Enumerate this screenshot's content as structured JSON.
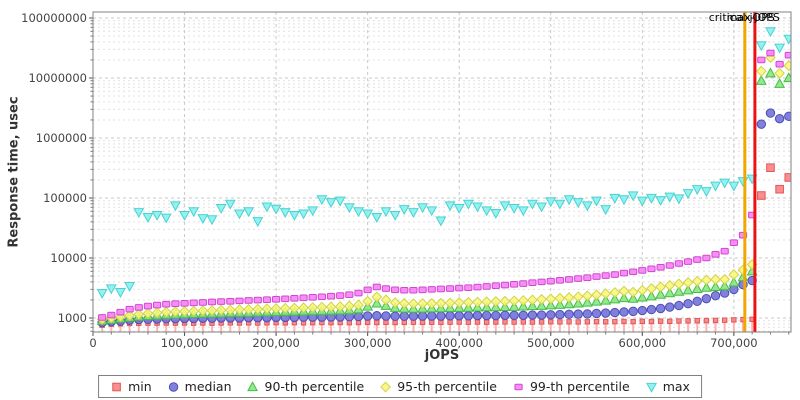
{
  "chart_data": {
    "type": "scatter",
    "title": "",
    "xlabel": "jOPS",
    "ylabel": "Response time, usec",
    "x_axis": {
      "tick_labels": [
        "0",
        "100,000",
        "200,000",
        "300,000",
        "400,000",
        "500,000",
        "600,000",
        "700,000"
      ],
      "tick_values": [
        0,
        100000,
        200000,
        300000,
        400000,
        500000,
        600000,
        700000
      ],
      "minor_tick_step": 20000,
      "xlim": [
        0,
        762000
      ]
    },
    "y_axis": {
      "scale": "log",
      "tick_labels": [
        "1000",
        "10000",
        "100000",
        "1000000",
        "10000000",
        "100000000"
      ],
      "tick_values": [
        1000,
        10000,
        100000,
        1000000,
        10000000,
        100000000
      ],
      "ylim": [
        584,
        126000000
      ]
    },
    "grid": true,
    "legend_position": "bottom",
    "annotations": {
      "critical": {
        "label": "critical-jOPS",
        "jops": 712000,
        "color": "#f2a600"
      },
      "max": {
        "label": "max-jOPS",
        "jops": 723000,
        "color": "#ee1111"
      }
    },
    "x": [
      10000,
      20000,
      30000,
      40000,
      50000,
      60000,
      70000,
      80000,
      90000,
      100000,
      110000,
      120000,
      130000,
      140000,
      150000,
      160000,
      170000,
      180000,
      190000,
      200000,
      210000,
      220000,
      230000,
      240000,
      250000,
      260000,
      270000,
      280000,
      290000,
      300000,
      310000,
      320000,
      330000,
      340000,
      350000,
      360000,
      370000,
      380000,
      390000,
      400000,
      410000,
      420000,
      430000,
      440000,
      450000,
      460000,
      470000,
      480000,
      490000,
      500000,
      510000,
      520000,
      530000,
      540000,
      550000,
      560000,
      570000,
      580000,
      590000,
      600000,
      610000,
      620000,
      630000,
      640000,
      650000,
      660000,
      670000,
      680000,
      690000,
      700000,
      710000,
      720000,
      730000,
      740000,
      750000,
      760000
    ],
    "series": [
      {
        "name": "min",
        "marker": "square-stick",
        "fill": "#f97d7d",
        "stroke": "#df5858",
        "stick": "#ffb3b3",
        "values": [
          760,
          790,
          800,
          810,
          815,
          820,
          820,
          825,
          820,
          825,
          820,
          825,
          820,
          825,
          830,
          825,
          830,
          825,
          830,
          835,
          830,
          835,
          830,
          835,
          840,
          835,
          840,
          835,
          840,
          845,
          840,
          845,
          840,
          845,
          850,
          845,
          850,
          845,
          850,
          855,
          850,
          855,
          850,
          855,
          860,
          855,
          860,
          855,
          860,
          865,
          860,
          865,
          860,
          865,
          870,
          865,
          870,
          875,
          870,
          880,
          875,
          885,
          880,
          890,
          895,
          900,
          905,
          910,
          920,
          930,
          940,
          950,
          110000,
          320000,
          140000,
          220000
        ]
      },
      {
        "name": "median",
        "marker": "circle",
        "fill": "#7070d8",
        "stroke": "#4c4cb8",
        "values": [
          840,
          870,
          890,
          920,
          940,
          950,
          960,
          970,
          970,
          980,
          980,
          990,
          990,
          1000,
          1000,
          1000,
          1010,
          1010,
          1010,
          1020,
          1020,
          1020,
          1030,
          1030,
          1030,
          1040,
          1040,
          1050,
          1060,
          1080,
          1090,
          1080,
          1070,
          1070,
          1070,
          1080,
          1080,
          1080,
          1090,
          1090,
          1090,
          1100,
          1100,
          1100,
          1110,
          1110,
          1110,
          1120,
          1120,
          1130,
          1140,
          1150,
          1160,
          1170,
          1190,
          1210,
          1230,
          1260,
          1290,
          1330,
          1380,
          1440,
          1520,
          1610,
          1730,
          1900,
          2100,
          2350,
          2600,
          3000,
          3600,
          4200,
          1700000,
          2600000,
          2100000,
          2300000
        ]
      },
      {
        "name": "90-th percentile",
        "marker": "triangle-up",
        "fill": "#82e87c",
        "stroke": "#48bc48",
        "values": [
          900,
          940,
          980,
          1020,
          1060,
          1090,
          1110,
          1130,
          1140,
          1160,
          1170,
          1180,
          1190,
          1200,
          1210,
          1220,
          1230,
          1240,
          1250,
          1260,
          1270,
          1280,
          1290,
          1300,
          1310,
          1320,
          1330,
          1350,
          1400,
          1550,
          1750,
          1600,
          1480,
          1440,
          1430,
          1440,
          1450,
          1460,
          1470,
          1480,
          1490,
          1500,
          1510,
          1520,
          1530,
          1540,
          1560,
          1580,
          1600,
          1630,
          1660,
          1700,
          1750,
          1810,
          1880,
          1960,
          2050,
          2150,
          2100,
          2200,
          2300,
          2450,
          2600,
          2750,
          2900,
          3050,
          3200,
          3300,
          3400,
          3900,
          4800,
          6000,
          9000000,
          12000000,
          8000000,
          10000000
        ]
      },
      {
        "name": "95-th percentile",
        "marker": "diamond",
        "fill": "#f7f77d",
        "stroke": "#d2d246",
        "values": [
          950,
          1000,
          1050,
          1100,
          1150,
          1190,
          1220,
          1250,
          1270,
          1290,
          1300,
          1320,
          1330,
          1350,
          1360,
          1380,
          1390,
          1400,
          1420,
          1430,
          1450,
          1460,
          1480,
          1490,
          1510,
          1530,
          1550,
          1580,
          1650,
          1900,
          2250,
          2000,
          1800,
          1750,
          1730,
          1740,
          1750,
          1760,
          1780,
          1800,
          1820,
          1840,
          1860,
          1880,
          1900,
          1930,
          1960,
          2000,
          2040,
          2080,
          2130,
          2190,
          2260,
          2340,
          2430,
          2540,
          2660,
          2800,
          2700,
          2900,
          3100,
          3300,
          3500,
          3700,
          3900,
          4100,
          4300,
          4400,
          4400,
          5300,
          6300,
          7800,
          13000000,
          22000000,
          12000000,
          16000000
        ]
      },
      {
        "name": "99-th percentile",
        "marker": "bar",
        "fill": "#f77df7",
        "stroke": "#cf48cf",
        "values": [
          1020,
          1120,
          1250,
          1400,
          1500,
          1580,
          1640,
          1700,
          1730,
          1760,
          1790,
          1820,
          1850,
          1880,
          1900,
          1930,
          1960,
          1990,
          2020,
          2050,
          2090,
          2130,
          2170,
          2210,
          2260,
          2310,
          2370,
          2450,
          2600,
          2950,
          3300,
          3100,
          2950,
          2900,
          2900,
          2950,
          3000,
          3050,
          3100,
          3150,
          3200,
          3280,
          3360,
          3450,
          3540,
          3640,
          3750,
          3870,
          4000,
          4100,
          4250,
          4400,
          4550,
          4700,
          4900,
          5100,
          5300,
          5600,
          5900,
          6200,
          6600,
          7000,
          7500,
          8100,
          8700,
          9400,
          10000,
          11500,
          13000,
          18000,
          24000,
          52000,
          20000000,
          26000000,
          17000000,
          24000000
        ]
      },
      {
        "name": "max",
        "marker": "triangle-down",
        "fill": "#84f0ee",
        "stroke": "#4ad2d2",
        "values": [
          2600,
          3100,
          2700,
          3400,
          58000,
          48000,
          52000,
          47000,
          75000,
          52000,
          60000,
          46000,
          44000,
          68000,
          80000,
          55000,
          60000,
          41000,
          72000,
          66000,
          58000,
          52000,
          55000,
          62000,
          95000,
          85000,
          90000,
          70000,
          60000,
          55000,
          48000,
          60000,
          52000,
          65000,
          58000,
          70000,
          62000,
          42000,
          75000,
          68000,
          80000,
          72000,
          62000,
          56000,
          75000,
          68000,
          62000,
          80000,
          72000,
          88000,
          80000,
          95000,
          85000,
          75000,
          90000,
          65000,
          100000,
          95000,
          110000,
          90000,
          100000,
          92000,
          105000,
          98000,
          120000,
          140000,
          130000,
          160000,
          180000,
          160000,
          190000,
          210000,
          35000000,
          60000000,
          32000000,
          45000000
        ]
      }
    ]
  },
  "legend": {
    "items": [
      {
        "name": "min",
        "label": "min"
      },
      {
        "name": "median",
        "label": "median"
      },
      {
        "name": "p90",
        "label": "90-th percentile"
      },
      {
        "name": "p95",
        "label": "95-th percentile"
      },
      {
        "name": "p99",
        "label": "99-th percentile"
      },
      {
        "name": "max",
        "label": "max"
      }
    ]
  }
}
